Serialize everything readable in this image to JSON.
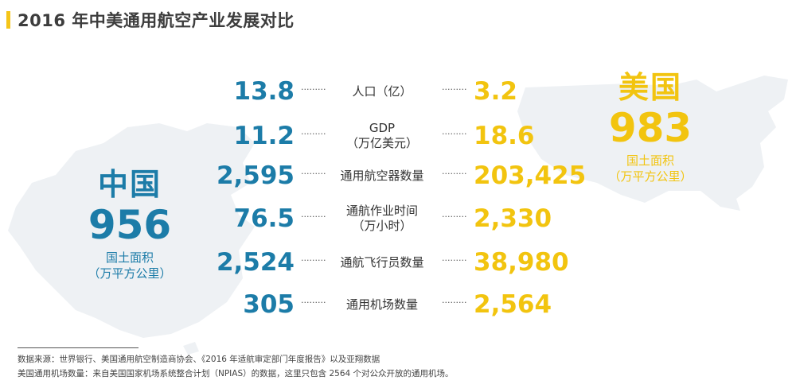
{
  "title": "2016 年中美通用航空产业发展对比",
  "colors": {
    "china": "#1c7ca8",
    "usa": "#f2c40f",
    "accent": "#f5c518",
    "map": "#eef1f4"
  },
  "china": {
    "name": "中国",
    "area": "956",
    "area_label": "国土面积",
    "area_unit": "（万平方公里）"
  },
  "usa": {
    "name": "美国",
    "area": "983",
    "area_label": "国土面积",
    "area_unit": "（万平方公里）"
  },
  "rows": [
    {
      "china": "13.8",
      "metric_line1": "人口（亿）",
      "metric_line2": "",
      "usa": "3.2"
    },
    {
      "china": "11.2",
      "metric_line1": "GDP",
      "metric_line2": "（万亿美元）",
      "usa": "18.6"
    },
    {
      "china": "2,595",
      "metric_line1": "通用航空器数量",
      "metric_line2": "",
      "usa": "203,425"
    },
    {
      "china": "76.5",
      "metric_line1": "通航作业时间",
      "metric_line2": "（万小时）",
      "usa": "2,330"
    },
    {
      "china": "2,524",
      "metric_line1": "通航飞行员数量",
      "metric_line2": "",
      "usa": "38,980"
    },
    {
      "china": "305",
      "metric_line1": "通用机场数量",
      "metric_line2": "",
      "usa": "2,564"
    }
  ],
  "dots": "·········",
  "source_line1": "数据来源：世界银行、美国通用航空制造商协会、《2016 年适航审定部门年度报告》以及亚翔数据",
  "source_line2": "美国通用机场数量：来自美国国家机场系统整合计划（NPIAS）的数据，这里只包含 2564 个对公众开放的通用机场。"
}
